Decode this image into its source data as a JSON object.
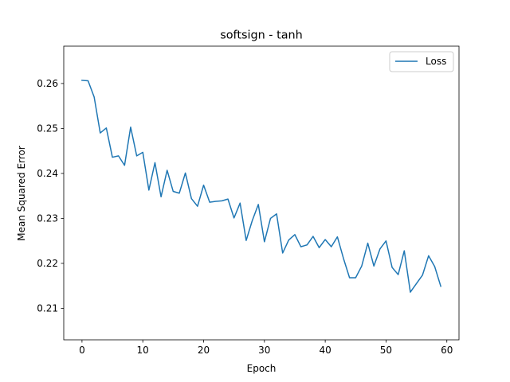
{
  "chart_data": {
    "type": "line",
    "title": "softsign - tanh",
    "xlabel": "Epoch",
    "ylabel": "Mean Squared Error",
    "xlim": [
      -3,
      62
    ],
    "ylim": [
      0.203,
      0.2683
    ],
    "xticks": [
      0,
      10,
      20,
      30,
      40,
      50,
      60
    ],
    "yticks": [
      0.21,
      0.22,
      0.23,
      0.24,
      0.25,
      0.26
    ],
    "ytick_labels": [
      "0.21",
      "0.22",
      "0.23",
      "0.24",
      "0.25",
      "0.26"
    ],
    "legend_position": "top-right",
    "grid": false,
    "series": [
      {
        "name": "Loss",
        "color": "#1f77b4",
        "x": [
          0,
          1,
          2,
          3,
          4,
          5,
          6,
          7,
          8,
          9,
          10,
          11,
          12,
          13,
          14,
          15,
          16,
          17,
          18,
          19,
          20,
          21,
          22,
          23,
          24,
          25,
          26,
          27,
          28,
          29,
          30,
          31,
          32,
          33,
          34,
          35,
          36,
          37,
          38,
          39,
          40,
          41,
          42,
          43,
          44,
          45,
          46,
          47,
          48,
          49,
          50,
          51,
          52,
          53,
          54,
          55,
          56,
          57,
          58,
          59
        ],
        "values": [
          0.2607,
          0.2606,
          0.257,
          0.249,
          0.2501,
          0.2436,
          0.2439,
          0.2418,
          0.2503,
          0.2439,
          0.2447,
          0.2363,
          0.2424,
          0.2348,
          0.2407,
          0.236,
          0.2356,
          0.2401,
          0.2344,
          0.2327,
          0.2374,
          0.2336,
          0.2338,
          0.2339,
          0.2343,
          0.2301,
          0.2334,
          0.2251,
          0.2295,
          0.2331,
          0.2248,
          0.23,
          0.231,
          0.2223,
          0.2252,
          0.2264,
          0.2237,
          0.2241,
          0.226,
          0.2235,
          0.2253,
          0.2237,
          0.2259,
          0.2211,
          0.2168,
          0.2168,
          0.2194,
          0.2245,
          0.2194,
          0.2232,
          0.225,
          0.2191,
          0.2175,
          0.2228,
          0.2136,
          0.2155,
          0.2174,
          0.2217,
          0.2193,
          0.2149
        ]
      }
    ]
  }
}
